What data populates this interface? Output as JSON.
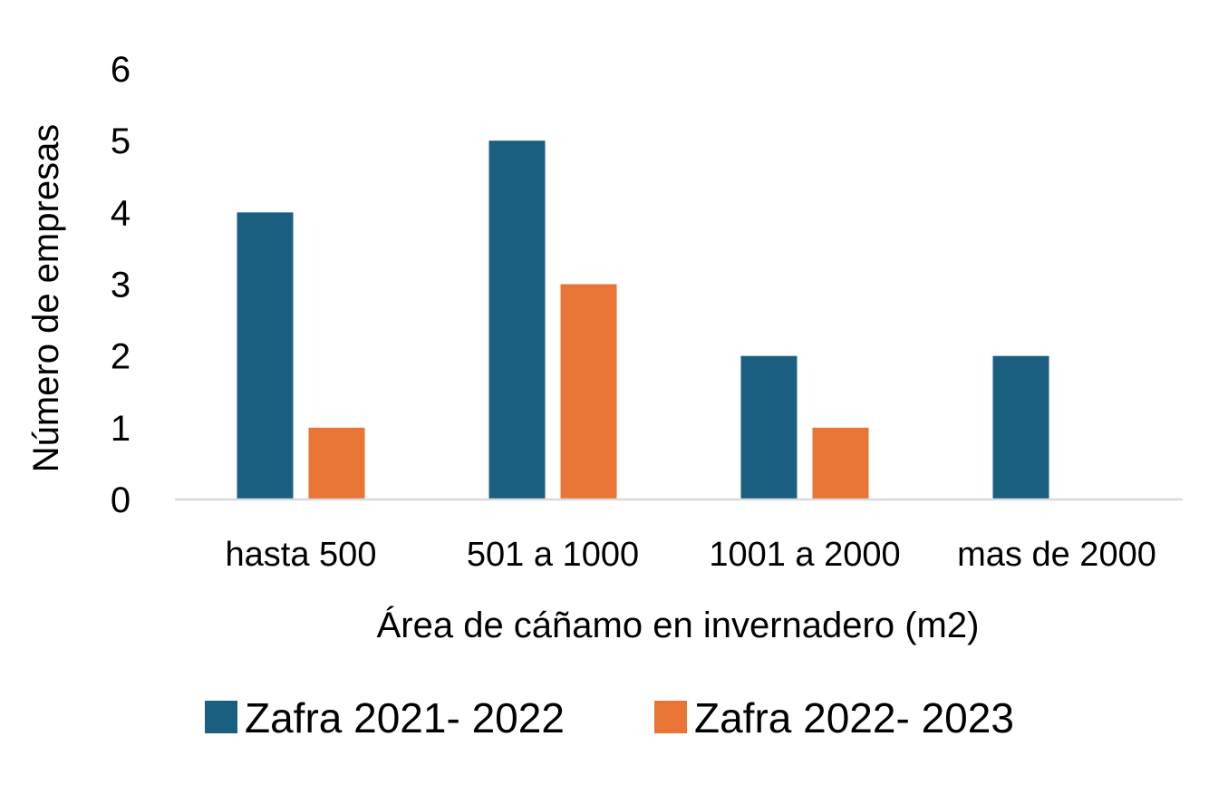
{
  "chart_data": {
    "type": "bar",
    "title": "",
    "xlabel": "Área de cáñamo en invernadero (m2)",
    "ylabel": "Número de empresas",
    "categories": [
      "hasta 500",
      "501 a 1000",
      "1001 a 2000",
      "mas de 2000"
    ],
    "series": [
      {
        "name": "Zafra 2021- 2022",
        "values": [
          4,
          5,
          2,
          2
        ],
        "color": "#1a5e80"
      },
      {
        "name": "Zafra 2022- 2023",
        "values": [
          1,
          3,
          1,
          0
        ],
        "color": "#e87435"
      }
    ],
    "ylim": [
      0,
      6
    ],
    "yticks": [
      0,
      1,
      2,
      3,
      4,
      5,
      6
    ],
    "grid": false,
    "legend": "bottom-center",
    "axis_color": "#d9d9d9"
  }
}
